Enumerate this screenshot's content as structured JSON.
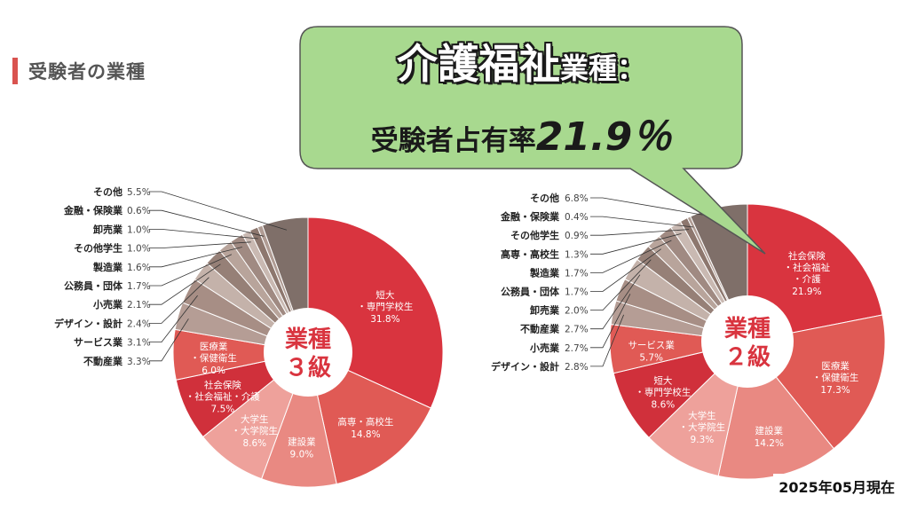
{
  "section_title": "受験者の業種",
  "callout": {
    "line1_big": "介護福祉",
    "line1_small": "業種：",
    "line2_text": "受験者占有率",
    "line2_value": "21.9％"
  },
  "footer_note": "2025年05月現在",
  "colors": {
    "callout_fill": "#a8d98f",
    "heading_bar": "#d9534f",
    "leader_line": "#333333"
  },
  "chart_data": [
    {
      "type": "pie",
      "title": "",
      "center_label": [
        "業種",
        "３級"
      ],
      "legend_placement": "left",
      "slices": [
        {
          "label": "短大\n・専門学校生",
          "value": 31.8,
          "pct": "31.8%",
          "color": "#d9343f",
          "text_color": "#ffffff"
        },
        {
          "label": "高専・高校生",
          "value": 14.8,
          "pct": "14.8%",
          "color": "#e05a55",
          "text_color": "#ffffff"
        },
        {
          "label": "建設業",
          "value": 9.0,
          "pct": "9.0%",
          "color": "#e98982",
          "text_color": "#ffffff"
        },
        {
          "label": "大学生\n・大学院生",
          "value": 8.6,
          "pct": "8.6%",
          "color": "#eea19b",
          "text_color": "#ffffff"
        },
        {
          "label": "社会保険\n・社会福祉・介護",
          "value": 7.5,
          "pct": "7.5%",
          "color": "#d0303b",
          "text_color": "#ffffff"
        },
        {
          "label": "医療業\n・保健衛生",
          "value": 6.0,
          "pct": "6.0%",
          "color": "#e05a55",
          "text_color": "#ffffff"
        },
        {
          "label": "不動産業",
          "value": 3.3,
          "pct": "3.3%",
          "color": "#b59d95",
          "text_color": "#333333"
        },
        {
          "label": "サービス業",
          "value": 3.1,
          "pct": "3.1%",
          "color": "#a78e85",
          "text_color": "#333333"
        },
        {
          "label": "デザイン・設計",
          "value": 2.4,
          "pct": "2.4%",
          "color": "#c4b2aa",
          "text_color": "#333333"
        },
        {
          "label": "小売業",
          "value": 2.1,
          "pct": "2.1%",
          "color": "#968077",
          "text_color": "#333333"
        },
        {
          "label": "公務員・団体",
          "value": 1.7,
          "pct": "1.7%",
          "color": "#b8a49b",
          "text_color": "#333333"
        },
        {
          "label": "製造業",
          "value": 1.6,
          "pct": "1.6%",
          "color": "#a08a82",
          "text_color": "#333333"
        },
        {
          "label": "その他学生",
          "value": 1.0,
          "pct": "1.0%",
          "color": "#c9b9b2",
          "text_color": "#333333"
        },
        {
          "label": "卸売業",
          "value": 1.0,
          "pct": "1.0%",
          "color": "#8d776e",
          "text_color": "#333333"
        },
        {
          "label": "金融・保険業",
          "value": 0.6,
          "pct": "0.6%",
          "color": "#b09c94",
          "text_color": "#333333"
        },
        {
          "label": "その他",
          "value": 5.5,
          "pct": "5.5%",
          "color": "#7f6f69",
          "text_color": "#333333"
        }
      ]
    },
    {
      "type": "pie",
      "title": "",
      "center_label": [
        "業種",
        "２級"
      ],
      "legend_placement": "left",
      "slices": [
        {
          "label": "社会保険\n・社会福祉\n・介護",
          "value": 21.9,
          "pct": "21.9%",
          "color": "#d9343f",
          "text_color": "#ffffff"
        },
        {
          "label": "医療業\n・保健衛生",
          "value": 17.3,
          "pct": "17.3%",
          "color": "#e05a55",
          "text_color": "#ffffff"
        },
        {
          "label": "建設業",
          "value": 14.2,
          "pct": "14.2%",
          "color": "#e98982",
          "text_color": "#ffffff"
        },
        {
          "label": "大学生\n・大学院生",
          "value": 9.3,
          "pct": "9.3%",
          "color": "#eea19b",
          "text_color": "#ffffff"
        },
        {
          "label": "短大\n・専門学校生",
          "value": 8.6,
          "pct": "8.6%",
          "color": "#d0303b",
          "text_color": "#ffffff"
        },
        {
          "label": "サービス業",
          "value": 5.7,
          "pct": "5.7%",
          "color": "#e05a55",
          "text_color": "#ffffff"
        },
        {
          "label": "デザイン・設計",
          "value": 2.8,
          "pct": "2.8%",
          "color": "#b59d95",
          "text_color": "#333333"
        },
        {
          "label": "小売業",
          "value": 2.7,
          "pct": "2.7%",
          "color": "#a78e85",
          "text_color": "#333333"
        },
        {
          "label": "不動産業",
          "value": 2.7,
          "pct": "2.7%",
          "color": "#c4b2aa",
          "text_color": "#333333"
        },
        {
          "label": "卸売業",
          "value": 2.0,
          "pct": "2.0%",
          "color": "#968077",
          "text_color": "#333333"
        },
        {
          "label": "公務員・団体",
          "value": 1.7,
          "pct": "1.7%",
          "color": "#b8a49b",
          "text_color": "#333333"
        },
        {
          "label": "製造業",
          "value": 1.7,
          "pct": "1.7%",
          "color": "#a08a82",
          "text_color": "#333333"
        },
        {
          "label": "高専・高校生",
          "value": 1.3,
          "pct": "1.3%",
          "color": "#c9b9b2",
          "text_color": "#333333"
        },
        {
          "label": "その他学生",
          "value": 0.9,
          "pct": "0.9%",
          "color": "#8d776e",
          "text_color": "#333333"
        },
        {
          "label": "金融・保険業",
          "value": 0.4,
          "pct": "0.4%",
          "color": "#b09c94",
          "text_color": "#333333"
        },
        {
          "label": "その他",
          "value": 6.8,
          "pct": "6.8%",
          "color": "#7f6f69",
          "text_color": "#333333"
        }
      ]
    }
  ]
}
